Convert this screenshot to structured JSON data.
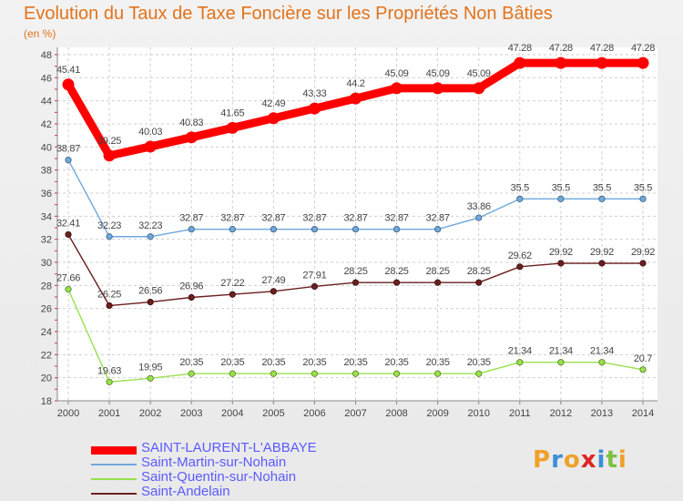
{
  "chart_data": {
    "type": "line",
    "title": "Evolution du Taux de Taxe Foncière sur les Propriétés Non Bâties",
    "ylabel": "(en %)",
    "xlabel": "",
    "ylim": [
      18,
      48
    ],
    "yticks": [
      18,
      20,
      22,
      24,
      26,
      28,
      30,
      32,
      34,
      36,
      38,
      40,
      42,
      44,
      46,
      48
    ],
    "grid": true,
    "legend_position": "bottom-left",
    "x": [
      "2000",
      "2001",
      "2002",
      "2003",
      "2004",
      "2005",
      "2006",
      "2007",
      "2008",
      "2009",
      "2010",
      "2011",
      "2012",
      "2013",
      "2014"
    ],
    "series": [
      {
        "name": "SAINT-LAURENT-L'ABBAYE",
        "color": "#ff0000",
        "values": [
          45.41,
          39.25,
          40.03,
          40.83,
          41.65,
          42.49,
          43.33,
          44.2,
          45.09,
          45.09,
          45.09,
          47.28,
          47.28,
          47.28,
          47.28
        ],
        "labels": [
          "45.41",
          "39.25",
          "40.03",
          "40.83",
          "41.65",
          "42.49",
          "43.33",
          "44.2",
          "45.09",
          "45.09",
          "45.09",
          "47.28",
          "47.28",
          "47.28",
          "47.28"
        ]
      },
      {
        "name": "Saint-Martin-sur-Nohain",
        "color": "#6fa8dc",
        "values": [
          38.87,
          32.23,
          32.23,
          32.87,
          32.87,
          32.87,
          32.87,
          32.87,
          32.87,
          32.87,
          33.86,
          35.5,
          35.5,
          35.5,
          35.5
        ],
        "labels": [
          "38.87",
          "32.23",
          "32.23",
          "32.87",
          "32.87",
          "32.87",
          "32.87",
          "32.87",
          "32.87",
          "32.87",
          "33.86",
          "35.5",
          "35.5",
          "35.5",
          "35.5"
        ]
      },
      {
        "name": "Saint-Quentin-sur-Nohain",
        "color": "#99e04c",
        "values": [
          27.66,
          19.63,
          19.95,
          20.35,
          20.35,
          20.35,
          20.35,
          20.35,
          20.35,
          20.35,
          20.35,
          21.34,
          21.34,
          21.34,
          20.7
        ],
        "labels": [
          "27.66",
          "19.63",
          "19.95",
          "20.35",
          "20.35",
          "20.35",
          "20.35",
          "20.35",
          "20.35",
          "20.35",
          "20.35",
          "21.34",
          "21.34",
          "21.34",
          "20.7"
        ]
      },
      {
        "name": "Saint-Andelain",
        "color": "#6b1f1f",
        "values": [
          32.41,
          26.25,
          26.56,
          26.96,
          27.22,
          27.49,
          27.91,
          28.25,
          28.25,
          28.25,
          28.25,
          29.62,
          29.92,
          29.92,
          29.92
        ],
        "labels": [
          "32.41",
          "26.25",
          "26.56",
          "26.96",
          "27.22",
          "27.49",
          "27.91",
          "28.25",
          "28.25",
          "28.25",
          "28.25",
          "29.62",
          "29.92",
          "29.92",
          "29.92"
        ]
      }
    ]
  },
  "logo": {
    "letters": [
      "P",
      "r",
      "o",
      "x",
      "i",
      "t",
      "i"
    ],
    "colors": [
      "#f0a12b",
      "#3b8fd6",
      "#f0a12b",
      "#e02424",
      "#3b8fd6",
      "#7cc142",
      "#f0a12b"
    ]
  }
}
